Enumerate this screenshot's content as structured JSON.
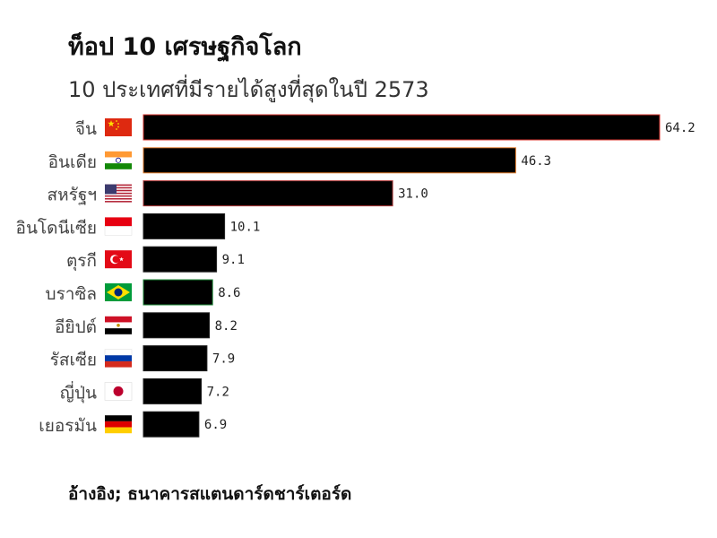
{
  "header": {
    "title": "ท็อป 10 เศรษฐกิจโลก",
    "subtitle": "10 ประเทศที่มีรายได้สูงที่สุดในปี 2573"
  },
  "footer": {
    "source": "อ้างอิง; ธนาคารสแตนดาร์ดชาร์เตอร์ด"
  },
  "chart_data": {
    "type": "bar",
    "orientation": "horizontal",
    "categories": [
      "จีน",
      "อินเดีย",
      "สหรัฐฯ",
      "อินโดนีเซีย",
      "ตุรกี",
      "บราซิล",
      "อียิปต์",
      "รัสเซีย",
      "ญี่ปุ่น",
      "เยอรมัน"
    ],
    "values": [
      64.2,
      46.3,
      31.0,
      10.1,
      9.1,
      8.6,
      8.2,
      7.9,
      7.2,
      6.9
    ],
    "value_labels": [
      "64.2",
      "46.3",
      "31.0",
      "10.1",
      "9.1",
      "8.6",
      "8.2",
      "7.9",
      "7.2",
      "6.9"
    ],
    "flags": [
      "china-flag-icon",
      "india-flag-icon",
      "usa-flag-icon",
      "indonesia-flag-icon",
      "turkey-flag-icon",
      "brazil-flag-icon",
      "egypt-flag-icon",
      "russia-flag-icon",
      "japan-flag-icon",
      "germany-flag-icon"
    ],
    "xlim": [
      0,
      64.2
    ],
    "bar_color": "#000000",
    "bar_edge_colors": [
      "#d4302a",
      "#e07a2a",
      "#b03a3a",
      "#222222",
      "#222222",
      "#1f8a3a",
      "#222222",
      "#222222",
      "#222222",
      "#222222"
    ],
    "grid": false
  }
}
